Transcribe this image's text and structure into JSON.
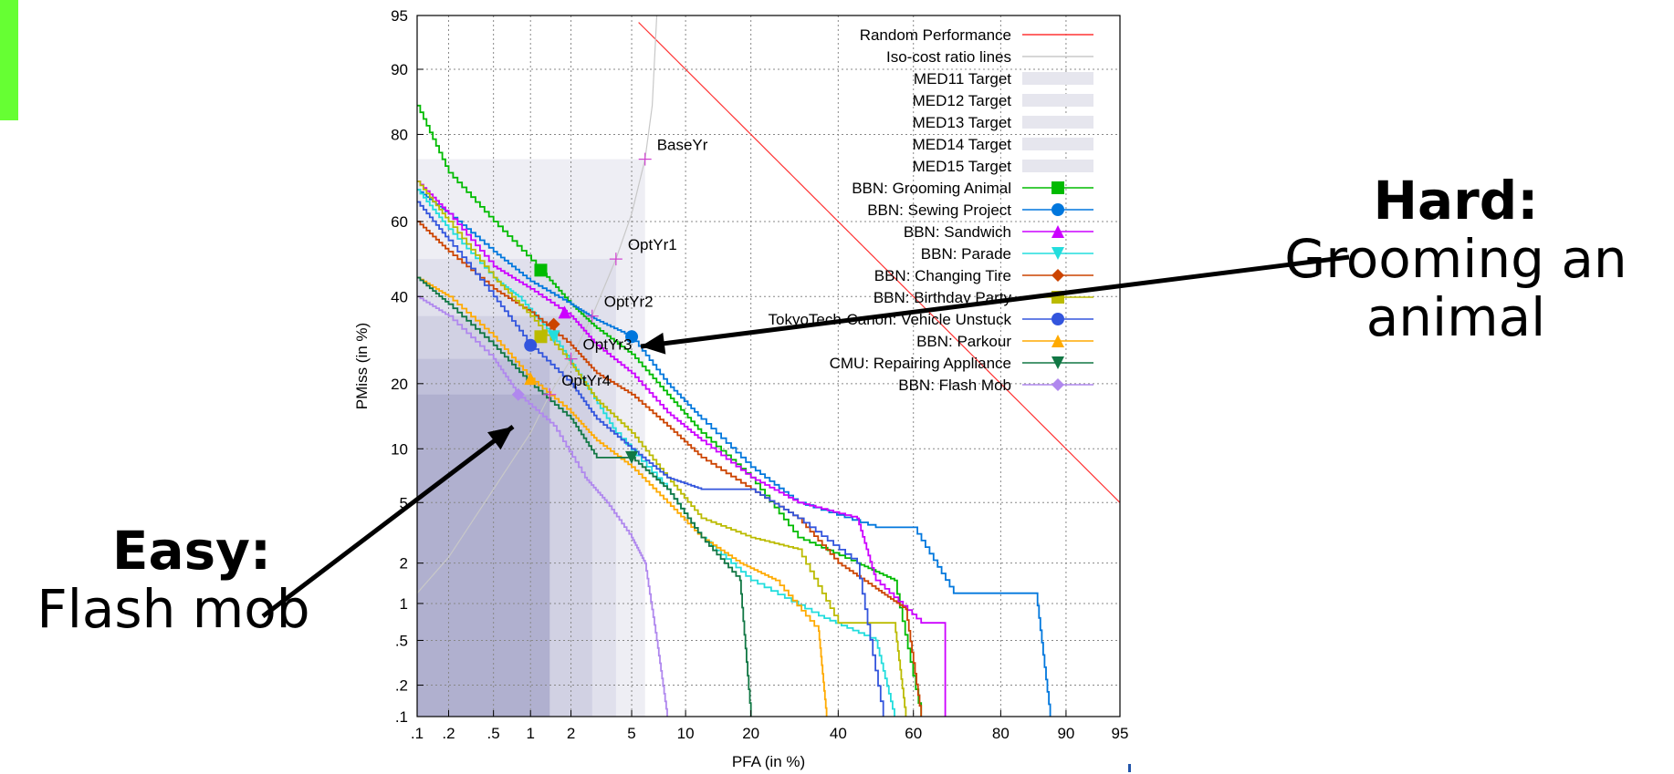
{
  "annotations": {
    "hard": {
      "heading": "Hard:",
      "line1": "Grooming an",
      "line2": "animal"
    },
    "easy": {
      "heading": "Easy:",
      "line1": "Flash mob"
    }
  },
  "chart_data": {
    "type": "line",
    "plot": "DET curve",
    "xlabel": "PFA (in %)",
    "ylabel": "PMiss (in %)",
    "xscale": "probit",
    "yscale": "probit",
    "xlim": [
      0.1,
      95
    ],
    "ylim": [
      0.1,
      95
    ],
    "x_ticks": [
      ".1",
      ".2",
      ".5",
      "1",
      "2",
      "5",
      "10",
      "20",
      "40",
      "60",
      "80",
      "90",
      "95"
    ],
    "y_ticks": [
      ".1",
      ".2",
      ".5",
      "1",
      "2",
      "5",
      "10",
      "20",
      "40",
      "60",
      "80",
      "90",
      "95"
    ],
    "grid": true,
    "legend_position": "top-right",
    "target_regions": [
      {
        "name": "MED11 Target",
        "pfa": 6,
        "pmiss": 75
      },
      {
        "name": "MED12 Target",
        "pfa": 4,
        "pmiss": 50
      },
      {
        "name": "MED13 Target",
        "pfa": 2.8,
        "pmiss": 35
      },
      {
        "name": "MED14 Target",
        "pfa": 1.4,
        "pmiss": 25
      },
      {
        "name": "MED15 Target",
        "pfa": 1.4,
        "pmiss": 18
      }
    ],
    "year_points": [
      {
        "label": "BaseYr",
        "pfa": 6,
        "pmiss": 75
      },
      {
        "label": "OptYr1",
        "pfa": 4,
        "pmiss": 50
      },
      {
        "label": "OptYr2",
        "pfa": 2.8,
        "pmiss": 35
      },
      {
        "label": "OptYr3",
        "pfa": 2,
        "pmiss": 25
      },
      {
        "label": "OptYr4",
        "pfa": 1.4,
        "pmiss": 18
      }
    ],
    "reference_lines": [
      {
        "name": "Random Performance",
        "color": "#ff3333"
      },
      {
        "name": "Iso-cost ratio lines",
        "color": "#c8c8c8"
      }
    ],
    "series": [
      {
        "name": "BBN: Grooming Animal",
        "color": "#00bb00",
        "marker": "square",
        "points": [
          [
            0.1,
            85
          ],
          [
            0.2,
            72
          ],
          [
            0.5,
            60
          ],
          [
            1.2,
            47
          ],
          [
            2,
            38
          ],
          [
            3,
            32
          ],
          [
            5,
            26
          ],
          [
            8,
            18
          ],
          [
            12,
            12
          ],
          [
            20,
            7
          ],
          [
            30,
            3
          ],
          [
            45,
            2
          ],
          [
            55,
            1.5
          ],
          [
            62,
            0.1
          ]
        ]
      },
      {
        "name": "BBN: Sewing Project",
        "color": "#0077dd",
        "marker": "circle",
        "points": [
          [
            0.1,
            68
          ],
          [
            0.2,
            62
          ],
          [
            0.5,
            52
          ],
          [
            1,
            44
          ],
          [
            2,
            38
          ],
          [
            3,
            34
          ],
          [
            5,
            30
          ],
          [
            8,
            20
          ],
          [
            12,
            14
          ],
          [
            20,
            8
          ],
          [
            30,
            5
          ],
          [
            50,
            3.5
          ],
          [
            60,
            3.5
          ],
          [
            70,
            1.2
          ],
          [
            86,
            1.2
          ],
          [
            88,
            0.1
          ]
        ]
      },
      {
        "name": "BBN: Sandwich",
        "color": "#cc00ff",
        "marker": "triangle-up",
        "points": [
          [
            0.1,
            70
          ],
          [
            0.2,
            62
          ],
          [
            0.5,
            48
          ],
          [
            1,
            42
          ],
          [
            2,
            35
          ],
          [
            3,
            28
          ],
          [
            5,
            22
          ],
          [
            8,
            15
          ],
          [
            12,
            11
          ],
          [
            20,
            7
          ],
          [
            30,
            5
          ],
          [
            45,
            4
          ],
          [
            50,
            1.5
          ],
          [
            62,
            0.7
          ],
          [
            68,
            0.7
          ],
          [
            68,
            0.1
          ]
        ]
      },
      {
        "name": "BBN: Parade",
        "color": "#22dddd",
        "marker": "triangle-down",
        "points": [
          [
            0.1,
            68
          ],
          [
            0.2,
            58
          ],
          [
            0.5,
            45
          ],
          [
            0.8,
            40
          ],
          [
            1.5,
            30
          ],
          [
            2.5,
            20
          ],
          [
            4,
            12
          ],
          [
            8,
            6
          ],
          [
            12,
            3
          ],
          [
            20,
            1.5
          ],
          [
            35,
            0.8
          ],
          [
            50,
            0.5
          ],
          [
            55,
            0.1
          ]
        ]
      },
      {
        "name": "BBN: Changing Tire",
        "color": "#cc4400",
        "marker": "diamond",
        "points": [
          [
            0.1,
            60
          ],
          [
            0.2,
            52
          ],
          [
            0.5,
            42
          ],
          [
            1,
            36
          ],
          [
            2,
            28
          ],
          [
            3,
            22
          ],
          [
            5,
            18
          ],
          [
            8,
            13
          ],
          [
            12,
            9
          ],
          [
            20,
            6
          ],
          [
            30,
            4
          ],
          [
            40,
            2
          ],
          [
            50,
            1.3
          ],
          [
            58,
            0.9
          ],
          [
            62,
            0.1
          ]
        ]
      },
      {
        "name": "BBN: Birthday Party",
        "color": "#bbbb00",
        "marker": "square",
        "points": [
          [
            0.1,
            70
          ],
          [
            0.2,
            60
          ],
          [
            0.5,
            45
          ],
          [
            1,
            35
          ],
          [
            2,
            24
          ],
          [
            3,
            17
          ],
          [
            5,
            12
          ],
          [
            8,
            7
          ],
          [
            12,
            4
          ],
          [
            20,
            3
          ],
          [
            30,
            2.5
          ],
          [
            40,
            0.7
          ],
          [
            55,
            0.7
          ],
          [
            58,
            0.1
          ]
        ]
      },
      {
        "name": "TokyoTech-Canon: Vehicle Unstuck",
        "color": "#3355dd",
        "marker": "circle",
        "points": [
          [
            0.1,
            65
          ],
          [
            0.2,
            55
          ],
          [
            0.5,
            40
          ],
          [
            1,
            28
          ],
          [
            2,
            20
          ],
          [
            3,
            14
          ],
          [
            5,
            10
          ],
          [
            8,
            7
          ],
          [
            12,
            6
          ],
          [
            20,
            6
          ],
          [
            30,
            4
          ],
          [
            45,
            2
          ],
          [
            52,
            0.1
          ]
        ]
      },
      {
        "name": "BBN: Parkour",
        "color": "#ffaa00",
        "marker": "triangle-up",
        "points": [
          [
            0.1,
            45
          ],
          [
            0.2,
            40
          ],
          [
            0.5,
            30
          ],
          [
            1,
            21
          ],
          [
            2,
            15
          ],
          [
            3,
            11
          ],
          [
            5,
            8
          ],
          [
            8,
            5
          ],
          [
            12,
            3
          ],
          [
            18,
            2
          ],
          [
            25,
            1.5
          ],
          [
            35,
            0.6
          ],
          [
            37,
            0.1
          ]
        ]
      },
      {
        "name": "CMU: Repairing Appliance",
        "color": "#117744",
        "marker": "triangle-down",
        "points": [
          [
            0.1,
            45
          ],
          [
            0.2,
            38
          ],
          [
            0.5,
            28
          ],
          [
            1,
            20
          ],
          [
            2,
            14
          ],
          [
            3,
            9
          ],
          [
            5,
            9
          ],
          [
            8,
            6
          ],
          [
            12,
            3
          ],
          [
            18,
            1.5
          ],
          [
            20,
            0.1
          ]
        ]
      },
      {
        "name": "BBN: Flash Mob",
        "color": "#b088ee",
        "marker": "diamond",
        "points": [
          [
            0.1,
            40
          ],
          [
            0.2,
            35
          ],
          [
            0.5,
            25
          ],
          [
            0.8,
            18
          ],
          [
            1.5,
            13
          ],
          [
            2.5,
            7
          ],
          [
            3.5,
            5
          ],
          [
            5,
            3
          ],
          [
            6,
            2
          ],
          [
            7,
            0.5
          ],
          [
            8,
            0.1
          ]
        ]
      }
    ]
  }
}
